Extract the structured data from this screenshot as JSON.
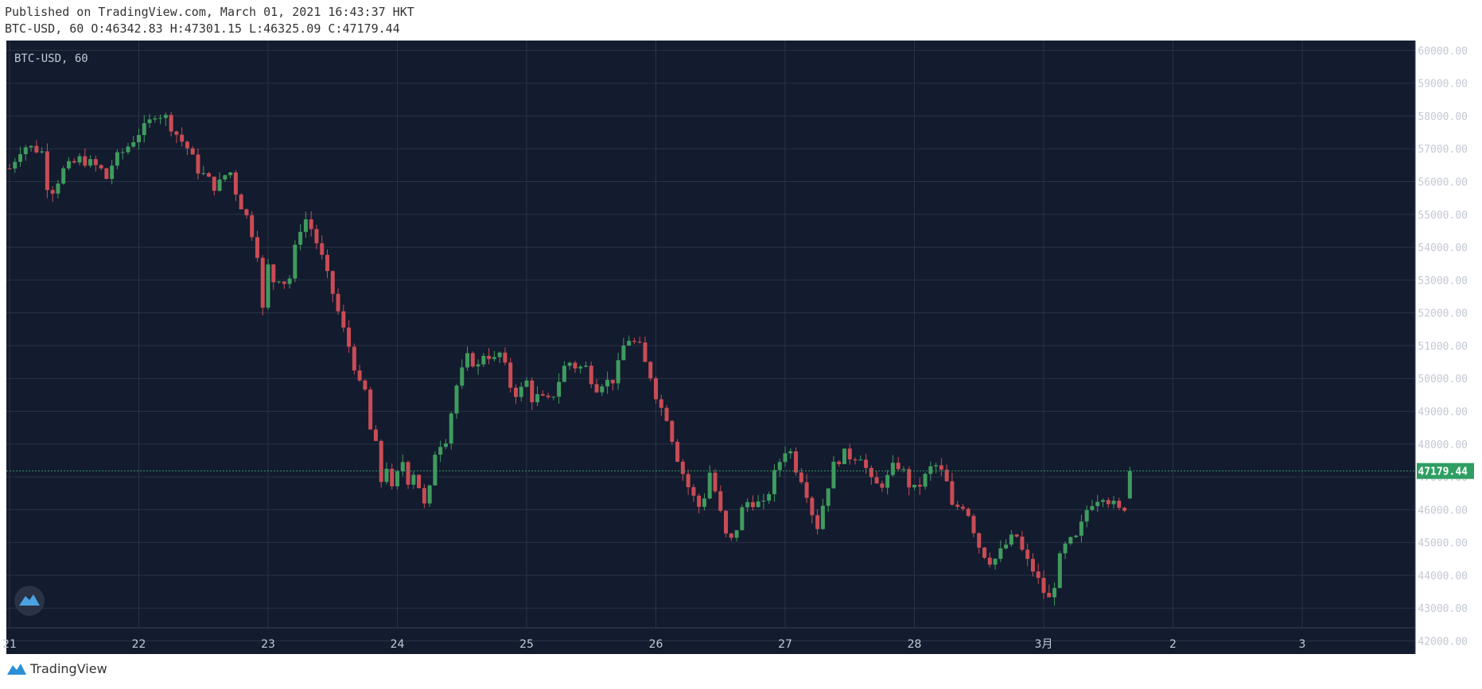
{
  "header": {
    "published": "Published on TradingView.com, March 01, 2021 16:43:37 HKT",
    "ohlc": "BTC-USD, 60 O:46342.83 H:47301.15 L:46325.09 C:47179.44"
  },
  "legend": "BTC-USD, 60",
  "footer_brand": "TradingView",
  "colors": {
    "bg": "#131b2e",
    "grid": "#2a3246",
    "up": "#3f9b5e",
    "down": "#c94c54",
    "last_price": "#2f9e63"
  },
  "chart_data": {
    "type": "candlestick",
    "symbol": "BTC-USD",
    "interval": "60",
    "x_ticks": [
      "21",
      "22",
      "23",
      "24",
      "25",
      "26",
      "27",
      "28",
      "3月",
      "2",
      "3"
    ],
    "y_ticks": [
      "42000.00",
      "43000.00",
      "44000.00",
      "45000.00",
      "46000.00",
      "47000.00",
      "48000.00",
      "49000.00",
      "50000.00",
      "51000.00",
      "52000.00",
      "53000.00",
      "54000.00",
      "55000.00",
      "56000.00",
      "57000.00",
      "58000.00",
      "59000.00",
      "60000.00"
    ],
    "ylim": [
      41600,
      60300
    ],
    "xlim_days": [
      0,
      10.9
    ],
    "last_price": "47179.44",
    "last_bar": {
      "open": 46342.83,
      "high": 47301.15,
      "low": 46325.09,
      "close": 47179.44
    },
    "close_path": [
      [
        0.0,
        56400
      ],
      [
        0.1,
        57100
      ],
      [
        0.2,
        57000
      ],
      [
        0.25,
        56900
      ],
      [
        0.3,
        55700
      ],
      [
        0.35,
        55800
      ],
      [
        0.4,
        56300
      ],
      [
        0.55,
        56700
      ],
      [
        0.7,
        56400
      ],
      [
        0.75,
        56100
      ],
      [
        0.8,
        56600
      ],
      [
        0.9,
        57000
      ],
      [
        1.0,
        57500
      ],
      [
        1.07,
        57700
      ],
      [
        1.12,
        58100
      ],
      [
        1.2,
        58000
      ],
      [
        1.3,
        57400
      ],
      [
        1.38,
        57000
      ],
      [
        1.45,
        56400
      ],
      [
        1.55,
        56000
      ],
      [
        1.6,
        55800
      ],
      [
        1.7,
        56400
      ],
      [
        1.75,
        55700
      ],
      [
        1.8,
        55200
      ],
      [
        1.85,
        54800
      ],
      [
        1.92,
        53800
      ],
      [
        1.96,
        52000
      ],
      [
        2.0,
        53400
      ],
      [
        2.05,
        52900
      ],
      [
        2.1,
        53200
      ],
      [
        2.15,
        52700
      ],
      [
        2.2,
        53800
      ],
      [
        2.25,
        54600
      ],
      [
        2.3,
        54900
      ],
      [
        2.35,
        54400
      ],
      [
        2.4,
        53900
      ],
      [
        2.45,
        53200
      ],
      [
        2.5,
        52600
      ],
      [
        2.58,
        51500
      ],
      [
        2.65,
        50700
      ],
      [
        2.7,
        49800
      ],
      [
        2.75,
        49600
      ],
      [
        2.8,
        48200
      ],
      [
        2.85,
        47800
      ],
      [
        2.88,
        46700
      ],
      [
        2.92,
        47400
      ],
      [
        2.98,
        46100
      ],
      [
        3.02,
        48000
      ],
      [
        3.07,
        46800
      ],
      [
        3.12,
        47200
      ],
      [
        3.16,
        46800
      ],
      [
        3.2,
        46300
      ],
      [
        3.23,
        45600
      ],
      [
        3.27,
        47600
      ],
      [
        3.32,
        48000
      ],
      [
        3.38,
        48200
      ],
      [
        3.45,
        49700
      ],
      [
        3.5,
        50200
      ],
      [
        3.55,
        50700
      ],
      [
        3.62,
        50300
      ],
      [
        3.68,
        50900
      ],
      [
        3.74,
        50500
      ],
      [
        3.8,
        50800
      ],
      [
        3.87,
        49800
      ],
      [
        3.93,
        49500
      ],
      [
        4.0,
        49900
      ],
      [
        4.05,
        49300
      ],
      [
        4.1,
        49500
      ],
      [
        4.15,
        49200
      ],
      [
        4.22,
        49600
      ],
      [
        4.28,
        50300
      ],
      [
        4.33,
        50500
      ],
      [
        4.4,
        50300
      ],
      [
        4.45,
        50400
      ],
      [
        4.5,
        50000
      ],
      [
        4.55,
        49700
      ],
      [
        4.6,
        50000
      ],
      [
        4.65,
        49800
      ],
      [
        4.72,
        50500
      ],
      [
        4.77,
        51300
      ],
      [
        4.82,
        51100
      ],
      [
        4.87,
        51000
      ],
      [
        4.92,
        50400
      ],
      [
        4.97,
        50000
      ],
      [
        5.02,
        49200
      ],
      [
        5.08,
        48900
      ],
      [
        5.15,
        47800
      ],
      [
        5.2,
        47200
      ],
      [
        5.25,
        46700
      ],
      [
        5.3,
        46300
      ],
      [
        5.35,
        46000
      ],
      [
        5.42,
        47200
      ],
      [
        5.48,
        46200
      ],
      [
        5.54,
        45200
      ],
      [
        5.6,
        45000
      ],
      [
        5.65,
        45900
      ],
      [
        5.72,
        46300
      ],
      [
        5.78,
        46200
      ],
      [
        5.84,
        46100
      ],
      [
        5.9,
        46900
      ],
      [
        5.96,
        47500
      ],
      [
        6.02,
        48000
      ],
      [
        6.08,
        47300
      ],
      [
        6.15,
        46800
      ],
      [
        6.2,
        46000
      ],
      [
        6.25,
        45500
      ],
      [
        6.32,
        46600
      ],
      [
        6.38,
        47400
      ],
      [
        6.45,
        47700
      ],
      [
        6.52,
        47600
      ],
      [
        6.58,
        47700
      ],
      [
        6.62,
        47300
      ],
      [
        6.68,
        46700
      ],
      [
        6.75,
        46800
      ],
      [
        6.8,
        47000
      ],
      [
        6.85,
        47400
      ],
      [
        6.9,
        47300
      ],
      [
        6.95,
        46800
      ],
      [
        7.0,
        46600
      ],
      [
        7.05,
        46800
      ],
      [
        7.1,
        47100
      ],
      [
        7.15,
        47400
      ],
      [
        7.2,
        47200
      ],
      [
        7.25,
        46800
      ],
      [
        7.3,
        45900
      ],
      [
        7.35,
        46200
      ],
      [
        7.4,
        46100
      ],
      [
        7.45,
        45500
      ],
      [
        7.5,
        44900
      ],
      [
        7.55,
        44600
      ],
      [
        7.6,
        44400
      ],
      [
        7.65,
        44600
      ],
      [
        7.7,
        44900
      ],
      [
        7.75,
        45100
      ],
      [
        7.8,
        45200
      ],
      [
        7.85,
        44500
      ],
      [
        7.9,
        44300
      ],
      [
        7.95,
        43900
      ],
      [
        8.0,
        43500
      ],
      [
        8.03,
        43200
      ],
      [
        8.07,
        43400
      ],
      [
        8.1,
        44200
      ],
      [
        8.15,
        44800
      ],
      [
        8.2,
        45000
      ],
      [
        8.25,
        45100
      ],
      [
        8.3,
        45600
      ],
      [
        8.35,
        46200
      ],
      [
        8.4,
        46300
      ],
      [
        8.45,
        46500
      ],
      [
        8.5,
        46300
      ],
      [
        8.55,
        46100
      ],
      [
        8.6,
        45900
      ],
      [
        8.65,
        46300
      ],
      [
        8.68,
        47179
      ]
    ]
  }
}
